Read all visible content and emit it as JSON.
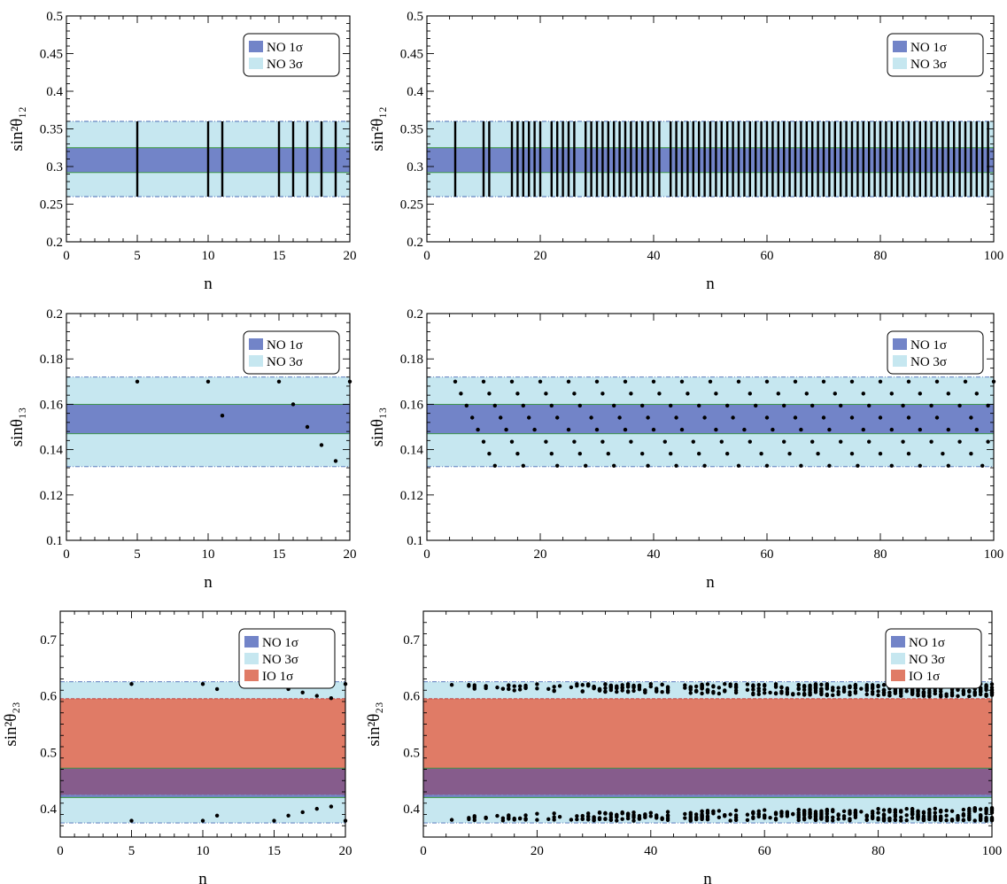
{
  "legend_labels": {
    "no1": "NO 1σ",
    "no3": "NO 3σ",
    "io1": "IO 1σ"
  },
  "colors": {
    "no1": "#7284c8",
    "no3": "#c6e7f0",
    "io1": "#e07b66",
    "overlap": "#865c8c",
    "points": "#000000"
  },
  "chart_data": [
    {
      "type": "bar",
      "id": "s12_20",
      "ylabel": "sin²θ₁₂",
      "xlabel": "n",
      "xlim": [
        0,
        20
      ],
      "ylim": [
        0.2,
        0.5
      ],
      "xticks": [
        0,
        5,
        10,
        15,
        20
      ],
      "yticks": [
        0.2,
        0.25,
        0.3,
        0.35,
        0.4,
        0.45,
        0.5
      ],
      "bands": {
        "no3": [
          0.26,
          0.36
        ],
        "no1": [
          0.292,
          0.325
        ]
      },
      "legend": [
        "no1",
        "no3"
      ],
      "legend_position": "top-right",
      "bar_range": [
        0.26,
        0.36
      ],
      "x": [
        5,
        10,
        11,
        15,
        16,
        17,
        18,
        19
      ]
    },
    {
      "type": "bar",
      "id": "s12_100",
      "ylabel": "sin²θ₁₂",
      "xlabel": "n",
      "xlim": [
        0,
        100
      ],
      "ylim": [
        0.2,
        0.5
      ],
      "xticks": [
        0,
        20,
        40,
        60,
        80,
        100
      ],
      "yticks": [
        0.2,
        0.25,
        0.3,
        0.35,
        0.4,
        0.45,
        0.5
      ],
      "bands": {
        "no3": [
          0.26,
          0.36
        ],
        "no1": [
          0.292,
          0.325
        ]
      },
      "legend": [
        "no1",
        "no3"
      ],
      "legend_position": "top-right",
      "bar_range": [
        0.26,
        0.36
      ],
      "x": [
        5,
        10,
        11,
        15,
        16,
        17,
        18,
        19,
        20,
        22,
        23,
        24,
        25,
        26,
        28,
        29,
        30,
        31,
        32,
        33,
        34,
        35,
        36,
        37,
        38,
        39,
        40,
        41,
        43,
        44,
        45,
        46,
        47,
        48,
        49,
        50,
        51,
        52,
        53,
        54,
        55,
        56,
        57,
        58,
        59,
        60,
        61,
        62,
        63,
        64,
        65,
        66,
        67,
        68,
        69,
        70,
        71,
        72,
        73,
        74,
        75,
        76,
        77,
        78,
        79,
        80,
        81,
        82,
        83,
        84,
        85,
        86,
        87,
        88,
        89,
        90,
        91,
        92,
        93,
        94,
        95,
        96,
        97,
        98,
        99
      ]
    },
    {
      "type": "scatter",
      "id": "s13_20",
      "ylabel": "sinθ₁₃",
      "xlabel": "n",
      "xlim": [
        0,
        20
      ],
      "ylim": [
        0.1,
        0.2
      ],
      "xticks": [
        0,
        5,
        10,
        15,
        20
      ],
      "yticks": [
        0.1,
        0.12,
        0.14,
        0.16,
        0.18,
        0.2
      ],
      "bands": {
        "no3": [
          0.1325,
          0.172
        ],
        "no1": [
          0.147,
          0.16
        ]
      },
      "legend": [
        "no1",
        "no3"
      ],
      "legend_position": "top-right",
      "points": [
        [
          5,
          0.17
        ],
        [
          10,
          0.17
        ],
        [
          11,
          0.155
        ],
        [
          15,
          0.17
        ],
        [
          16,
          0.16
        ],
        [
          17,
          0.15
        ],
        [
          18,
          0.142
        ],
        [
          19,
          0.135
        ],
        [
          20,
          0.17
        ]
      ]
    },
    {
      "type": "scatter",
      "id": "s13_100",
      "ylabel": "sinθ₁₃",
      "xlabel": "n",
      "xlim": [
        0,
        100
      ],
      "ylim": [
        0.1,
        0.2
      ],
      "xticks": [
        0,
        20,
        40,
        60,
        80,
        100
      ],
      "yticks": [
        0.1,
        0.12,
        0.14,
        0.16,
        0.18,
        0.2
      ],
      "bands": {
        "no3": [
          0.1325,
          0.172
        ],
        "no1": [
          0.147,
          0.16
        ]
      },
      "legend": [
        "no1",
        "no3"
      ],
      "legend_position": "top-right",
      "generator": {
        "y_start": 0.17,
        "y_step": -0.0053,
        "y_min": 0.1325,
        "starts": [
          5,
          10,
          15,
          20,
          25,
          30,
          35,
          40,
          45,
          50,
          55,
          60,
          65,
          70,
          75,
          80,
          85,
          90,
          95,
          100
        ],
        "slopes": [
          1,
          1.05,
          1.1,
          1.15,
          1.2,
          1.25,
          1.3,
          1.35,
          1.4,
          1.45,
          1.5,
          1.55,
          1.6,
          1.65,
          1.7,
          1.75,
          1.8,
          1.85,
          1.9,
          1.95
        ]
      }
    },
    {
      "type": "scatter",
      "id": "s23_20",
      "ylabel": "sin²θ₂₃",
      "xlabel": "n",
      "xlim": [
        0,
        20
      ],
      "ylim": [
        0.35,
        0.75
      ],
      "xticks": [
        0,
        5,
        10,
        15,
        20
      ],
      "yticks": [
        0.4,
        0.5,
        0.6,
        0.7
      ],
      "bands": {
        "no3": [
          0.375,
          0.625
        ],
        "io1": [
          0.425,
          0.595
        ],
        "no1": [
          0.42,
          0.472
        ]
      },
      "legend": [
        "no1",
        "no3",
        "io1"
      ],
      "legend_position": "top-right",
      "points": [
        [
          5,
          0.621
        ],
        [
          10,
          0.621
        ],
        [
          11,
          0.612
        ],
        [
          15,
          0.621
        ],
        [
          16,
          0.612
        ],
        [
          17,
          0.606
        ],
        [
          18,
          0.6
        ],
        [
          19,
          0.596
        ],
        [
          20,
          0.621
        ],
        [
          5,
          0.379
        ],
        [
          10,
          0.379
        ],
        [
          11,
          0.388
        ],
        [
          15,
          0.379
        ],
        [
          16,
          0.388
        ],
        [
          17,
          0.394
        ],
        [
          18,
          0.4
        ],
        [
          19,
          0.404
        ],
        [
          20,
          0.379
        ]
      ]
    },
    {
      "type": "scatter",
      "id": "s23_100",
      "ylabel": "sin²θ₂₃",
      "xlabel": "n",
      "xlim": [
        0,
        100
      ],
      "ylim": [
        0.35,
        0.75
      ],
      "xticks": [
        0,
        20,
        40,
        60,
        80,
        100
      ],
      "yticks": [
        0.4,
        0.5,
        0.6,
        0.7
      ],
      "bands": {
        "no3": [
          0.375,
          0.625
        ],
        "io1": [
          0.425,
          0.595
        ],
        "no1": [
          0.42,
          0.472
        ]
      },
      "legend": [
        "no1",
        "no3",
        "io1"
      ],
      "legend_position": "top-right",
      "generator": {
        "upper": [
          0.596,
          0.621
        ],
        "lower": [
          0.379,
          0.404
        ],
        "count": 420
      }
    }
  ]
}
